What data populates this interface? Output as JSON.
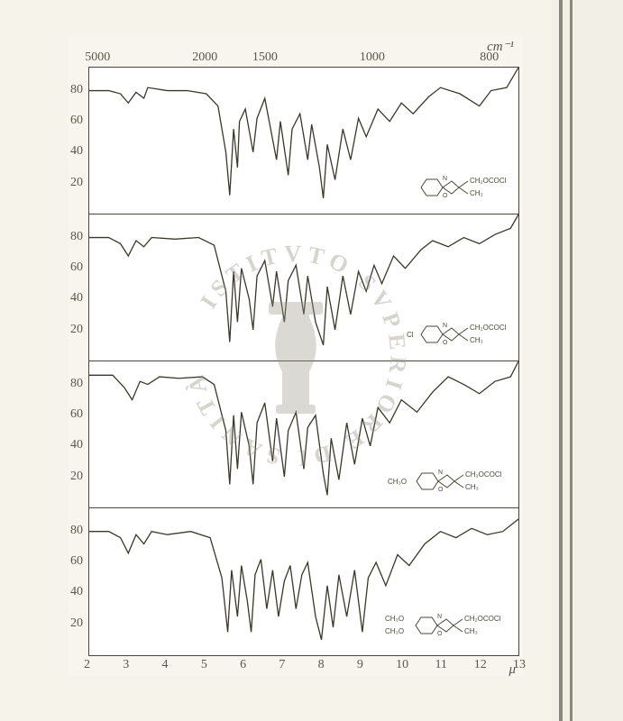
{
  "figure": {
    "background_color": "#f6f3ea",
    "paper_color": "#f8f5ee",
    "plot_bg": "#ffffff",
    "border_color": "#4a4738",
    "line_color": "#3a372a",
    "tick_color": "#5a5648",
    "font_family": "Times New Roman",
    "top_axis": {
      "label": "cm⁻¹",
      "ticks": [
        {
          "pos": 0.03,
          "label": "5000"
        },
        {
          "pos": 0.28,
          "label": "2000"
        },
        {
          "pos": 0.42,
          "label": "1500"
        },
        {
          "pos": 0.67,
          "label": "1000"
        },
        {
          "pos": 0.95,
          "label": "800"
        }
      ]
    },
    "bottom_axis": {
      "label": "μ",
      "xlim": [
        2,
        13
      ],
      "ticks": [
        2,
        3,
        4,
        5,
        6,
        7,
        8,
        9,
        10,
        11,
        12,
        13
      ]
    },
    "y_axis": {
      "ticks": [
        20,
        40,
        60,
        80
      ],
      "ylim": [
        0,
        95
      ]
    },
    "panels": [
      {
        "chem_label": "CH₂OCOCl / CH₃ (benzoxazoline)",
        "chem_sub1": "",
        "chem_sub2": "",
        "spectrum": [
          [
            2,
            80
          ],
          [
            2.5,
            80
          ],
          [
            2.8,
            78
          ],
          [
            3.0,
            72
          ],
          [
            3.2,
            79
          ],
          [
            3.4,
            75
          ],
          [
            3.5,
            82
          ],
          [
            4.0,
            80
          ],
          [
            4.5,
            80
          ],
          [
            5.0,
            78
          ],
          [
            5.3,
            70
          ],
          [
            5.5,
            40
          ],
          [
            5.6,
            12
          ],
          [
            5.7,
            55
          ],
          [
            5.8,
            30
          ],
          [
            5.85,
            60
          ],
          [
            6.0,
            68
          ],
          [
            6.2,
            40
          ],
          [
            6.3,
            62
          ],
          [
            6.5,
            75
          ],
          [
            6.8,
            35
          ],
          [
            6.9,
            60
          ],
          [
            7.1,
            25
          ],
          [
            7.2,
            55
          ],
          [
            7.4,
            65
          ],
          [
            7.6,
            35
          ],
          [
            7.7,
            58
          ],
          [
            7.9,
            30
          ],
          [
            8.0,
            10
          ],
          [
            8.1,
            45
          ],
          [
            8.3,
            22
          ],
          [
            8.5,
            55
          ],
          [
            8.7,
            35
          ],
          [
            8.9,
            62
          ],
          [
            9.1,
            50
          ],
          [
            9.4,
            68
          ],
          [
            9.7,
            60
          ],
          [
            10.0,
            72
          ],
          [
            10.3,
            65
          ],
          [
            10.7,
            76
          ],
          [
            11.0,
            82
          ],
          [
            11.5,
            78
          ],
          [
            12.0,
            70
          ],
          [
            12.3,
            80
          ],
          [
            12.7,
            82
          ],
          [
            13.0,
            95
          ]
        ]
      },
      {
        "chem_label": "CH₂OCOCl / CH₃ (5-Cl benzoxazoline)",
        "chem_sub1": "Cl",
        "chem_sub2": "",
        "spectrum": [
          [
            2,
            80
          ],
          [
            2.5,
            80
          ],
          [
            2.8,
            76
          ],
          [
            3.0,
            68
          ],
          [
            3.2,
            78
          ],
          [
            3.4,
            74
          ],
          [
            3.6,
            80
          ],
          [
            4.2,
            79
          ],
          [
            4.8,
            80
          ],
          [
            5.2,
            75
          ],
          [
            5.5,
            45
          ],
          [
            5.6,
            12
          ],
          [
            5.7,
            58
          ],
          [
            5.8,
            25
          ],
          [
            5.9,
            60
          ],
          [
            6.1,
            40
          ],
          [
            6.2,
            20
          ],
          [
            6.3,
            55
          ],
          [
            6.5,
            65
          ],
          [
            6.7,
            35
          ],
          [
            6.8,
            58
          ],
          [
            7.0,
            25
          ],
          [
            7.1,
            52
          ],
          [
            7.3,
            62
          ],
          [
            7.5,
            30
          ],
          [
            7.6,
            55
          ],
          [
            7.8,
            25
          ],
          [
            8.0,
            10
          ],
          [
            8.1,
            48
          ],
          [
            8.3,
            20
          ],
          [
            8.5,
            55
          ],
          [
            8.7,
            30
          ],
          [
            8.9,
            58
          ],
          [
            9.1,
            45
          ],
          [
            9.3,
            62
          ],
          [
            9.5,
            50
          ],
          [
            9.8,
            68
          ],
          [
            10.1,
            60
          ],
          [
            10.5,
            72
          ],
          [
            10.8,
            78
          ],
          [
            11.2,
            74
          ],
          [
            11.6,
            80
          ],
          [
            12.0,
            76
          ],
          [
            12.4,
            82
          ],
          [
            12.8,
            86
          ],
          [
            13.0,
            95
          ]
        ]
      },
      {
        "chem_label": "CH₂OCOCl / CH₃ (5-OCH₃ benzoxazoline)",
        "chem_sub1": "CH₃O",
        "chem_sub2": "",
        "spectrum": [
          [
            2,
            86
          ],
          [
            2.6,
            86
          ],
          [
            2.9,
            78
          ],
          [
            3.1,
            70
          ],
          [
            3.3,
            82
          ],
          [
            3.5,
            80
          ],
          [
            3.8,
            85
          ],
          [
            4.3,
            84
          ],
          [
            4.9,
            85
          ],
          [
            5.2,
            80
          ],
          [
            5.5,
            50
          ],
          [
            5.6,
            15
          ],
          [
            5.7,
            60
          ],
          [
            5.8,
            25
          ],
          [
            5.9,
            62
          ],
          [
            6.1,
            40
          ],
          [
            6.2,
            15
          ],
          [
            6.3,
            55
          ],
          [
            6.5,
            68
          ],
          [
            6.7,
            30
          ],
          [
            6.8,
            58
          ],
          [
            7.0,
            20
          ],
          [
            7.1,
            50
          ],
          [
            7.3,
            62
          ],
          [
            7.5,
            25
          ],
          [
            7.6,
            52
          ],
          [
            7.8,
            60
          ],
          [
            8.0,
            22
          ],
          [
            8.1,
            8
          ],
          [
            8.2,
            45
          ],
          [
            8.4,
            18
          ],
          [
            8.6,
            55
          ],
          [
            8.8,
            28
          ],
          [
            9.0,
            58
          ],
          [
            9.2,
            40
          ],
          [
            9.4,
            65
          ],
          [
            9.7,
            55
          ],
          [
            10.0,
            70
          ],
          [
            10.4,
            62
          ],
          [
            10.8,
            75
          ],
          [
            11.2,
            85
          ],
          [
            11.6,
            80
          ],
          [
            12.0,
            74
          ],
          [
            12.4,
            82
          ],
          [
            12.8,
            85
          ],
          [
            13.0,
            95
          ]
        ]
      },
      {
        "chem_label": "CH₂OCOCl / CH₃ (di-OCH₃ benzoxazoline)",
        "chem_sub1": "CH₃O",
        "chem_sub2": "CH₃O",
        "spectrum": [
          [
            2,
            80
          ],
          [
            2.5,
            80
          ],
          [
            2.8,
            76
          ],
          [
            3.0,
            66
          ],
          [
            3.2,
            78
          ],
          [
            3.4,
            72
          ],
          [
            3.6,
            80
          ],
          [
            4.0,
            78
          ],
          [
            4.6,
            80
          ],
          [
            5.1,
            76
          ],
          [
            5.4,
            50
          ],
          [
            5.55,
            15
          ],
          [
            5.65,
            55
          ],
          [
            5.8,
            25
          ],
          [
            5.9,
            58
          ],
          [
            6.05,
            35
          ],
          [
            6.15,
            15
          ],
          [
            6.25,
            52
          ],
          [
            6.4,
            62
          ],
          [
            6.55,
            30
          ],
          [
            6.7,
            55
          ],
          [
            6.85,
            25
          ],
          [
            7.0,
            48
          ],
          [
            7.15,
            58
          ],
          [
            7.3,
            30
          ],
          [
            7.45,
            52
          ],
          [
            7.6,
            60
          ],
          [
            7.8,
            25
          ],
          [
            7.95,
            10
          ],
          [
            8.1,
            45
          ],
          [
            8.25,
            18
          ],
          [
            8.4,
            52
          ],
          [
            8.6,
            25
          ],
          [
            8.8,
            55
          ],
          [
            9.0,
            15
          ],
          [
            9.15,
            50
          ],
          [
            9.35,
            60
          ],
          [
            9.6,
            45
          ],
          [
            9.9,
            65
          ],
          [
            10.2,
            58
          ],
          [
            10.6,
            72
          ],
          [
            11.0,
            80
          ],
          [
            11.4,
            76
          ],
          [
            11.8,
            82
          ],
          [
            12.2,
            78
          ],
          [
            12.6,
            80
          ],
          [
            13.0,
            88
          ]
        ]
      }
    ]
  },
  "watermark": {
    "text": "ISTITVTO SVPERIORE DI SANITÀ",
    "icon_color": "#9a9688",
    "opacity": 0.4
  }
}
